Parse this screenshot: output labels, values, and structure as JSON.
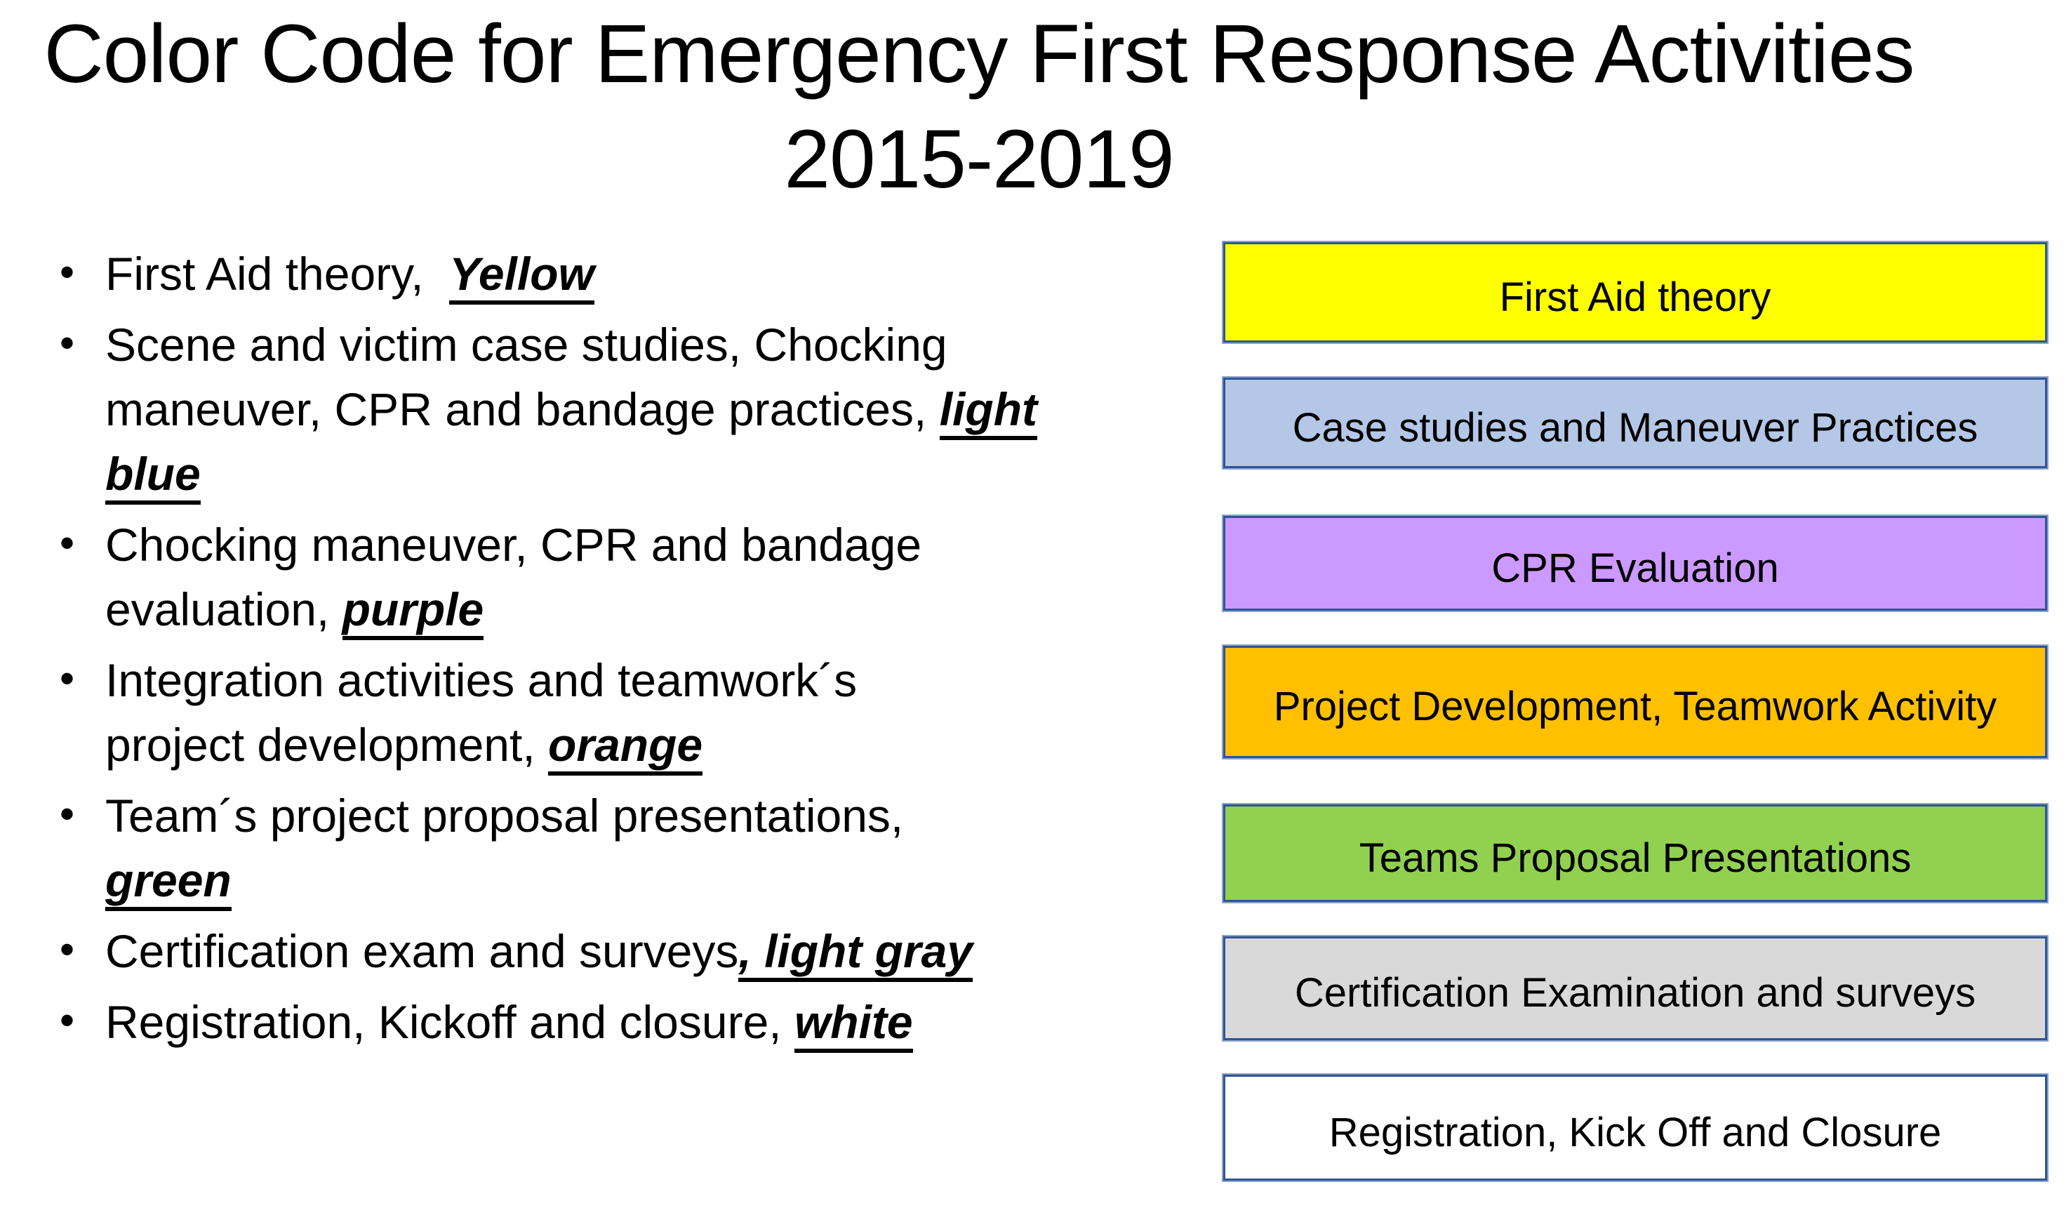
{
  "title": {
    "line1": "Color Code for Emergency First Response Activities",
    "line2": "2015-2019"
  },
  "bullets": [
    {
      "lines": [
        [
          {
            "t": "First Aid theory,  ",
            "em": false
          },
          {
            "t": "Yellow",
            "em": true
          }
        ]
      ]
    },
    {
      "lines": [
        [
          {
            "t": "Scene and victim case studies, Chocking",
            "em": false
          }
        ],
        [
          {
            "t": "maneuver, CPR and bandage practices, ",
            "em": false
          },
          {
            "t": "light",
            "em": true
          }
        ],
        [
          {
            "t": "blue",
            "em": true
          }
        ]
      ]
    },
    {
      "lines": [
        [
          {
            "t": "Chocking maneuver, CPR and bandage",
            "em": false
          }
        ],
        [
          {
            "t": "evaluation, ",
            "em": false
          },
          {
            "t": "purple",
            "em": true
          }
        ]
      ]
    },
    {
      "lines": [
        [
          {
            "t": "Integration activities and teamwork´s",
            "em": false
          }
        ],
        [
          {
            "t": "project development, ",
            "em": false
          },
          {
            "t": "orange",
            "em": true
          }
        ]
      ]
    },
    {
      "lines": [
        [
          {
            "t": "Team´s project proposal presentations,",
            "em": false
          }
        ],
        [
          {
            "t": "green",
            "em": true
          }
        ]
      ]
    },
    {
      "lines": [
        [
          {
            "t": "Certification exam and surveys",
            "em": false
          },
          {
            "t": ", light gray",
            "em": true
          }
        ]
      ]
    },
    {
      "lines": [
        [
          {
            "t": "Registration, Kickoff and closure, ",
            "em": false
          },
          {
            "t": "white",
            "em": true
          }
        ]
      ]
    }
  ],
  "legend": [
    {
      "label": "First Aid theory",
      "color": "#FFFF00"
    },
    {
      "label": "Case studies and Maneuver Practices",
      "color": "#B4C7E7"
    },
    {
      "label": "CPR Evaluation",
      "color": "#CC99FF"
    },
    {
      "label": "Project Development, Teamwork Activity",
      "color": "#FFC000"
    },
    {
      "label": "Teams Proposal Presentations",
      "color": "#92D050"
    },
    {
      "label": "Certification Examination and surveys",
      "color": "#D9D9D9"
    },
    {
      "label": "Registration, Kick Off and Closure",
      "color": "#FFFFFF"
    }
  ],
  "colors": {
    "background": "#FFFFFF",
    "text": "#000000",
    "box_border_inner": "#2F5597",
    "box_border_outer": "#8CA3C9"
  }
}
